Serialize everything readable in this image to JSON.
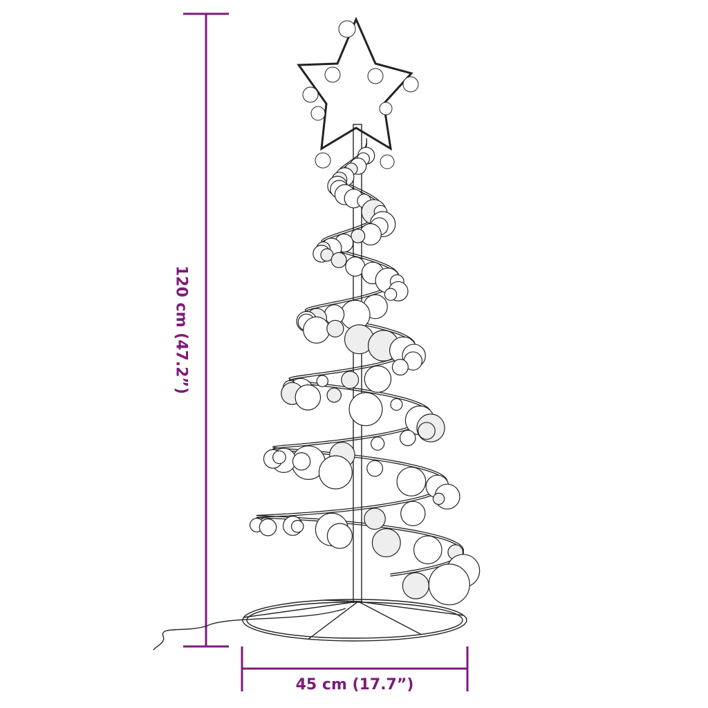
{
  "dimensions": {
    "height_label": "120 cm (47.2”)",
    "width_label": "45 cm (17.7”)",
    "color": "#7d1a7a"
  },
  "product": {
    "icon": "spiral-christmas-tree-with-star-and-baubles"
  }
}
